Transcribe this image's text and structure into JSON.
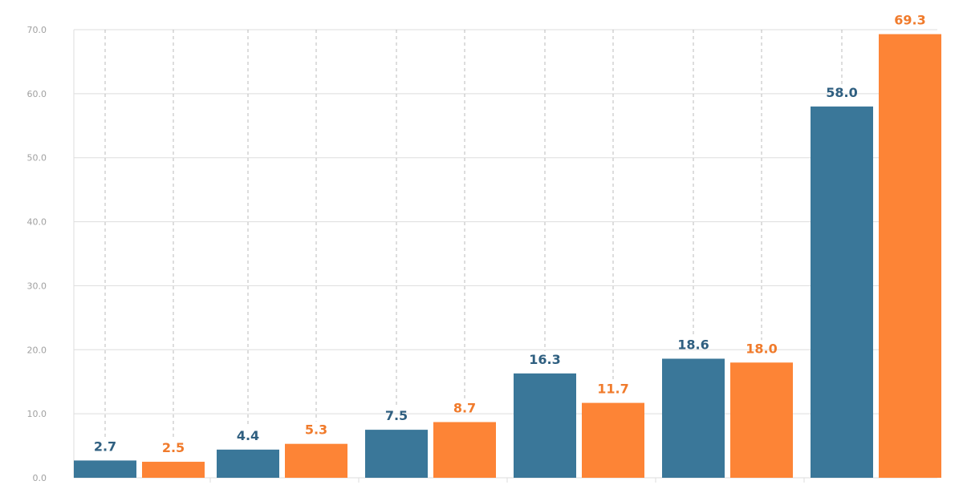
{
  "chart_data": {
    "type": "bar",
    "categories": [
      "",
      "",
      "",
      "",
      "",
      ""
    ],
    "ylim": [
      0,
      70
    ],
    "yticks": [
      "0.0",
      "10.0",
      "20.0",
      "30.0",
      "40.0",
      "50.0",
      "60.0",
      "70.0"
    ],
    "grid": true,
    "legend": "none",
    "series": [
      {
        "color": "#3a7799",
        "values": [
          2.7,
          4.4,
          7.5,
          16.3,
          18.6,
          58.0
        ],
        "labels": [
          "2.7",
          "4.4",
          "7.5",
          "16.3",
          "18.6",
          "58.0"
        ]
      },
      {
        "color": "#fd8436",
        "values": [
          2.5,
          5.3,
          8.7,
          11.7,
          18.0,
          69.3
        ],
        "labels": [
          "2.5",
          "5.3",
          "8.7",
          "11.7",
          "18.0",
          "69.3"
        ]
      }
    ],
    "colors": {
      "blue_label": "#2f5f80",
      "orange_label": "#f07b2c",
      "grid": "#dddddd",
      "dashed": "#bbbbbb",
      "tick_text": "#a0a0a0"
    }
  }
}
